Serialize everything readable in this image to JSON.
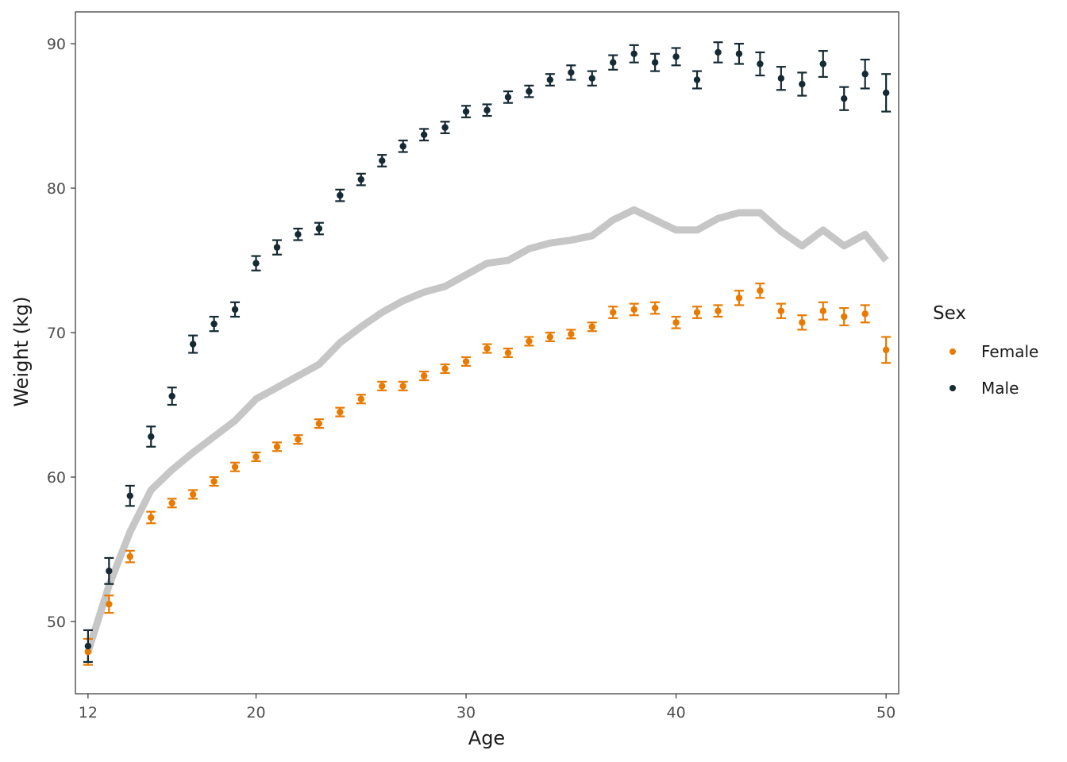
{
  "chart_data": {
    "type": "scatter",
    "xlabel": "Age",
    "ylabel": "Weight (kg)",
    "xlim": [
      11.4,
      50.6
    ],
    "ylim": [
      45,
      92.2
    ],
    "x_ticks": [
      12,
      20,
      30,
      40,
      50
    ],
    "y_ticks": [
      50,
      60,
      70,
      80,
      90
    ],
    "grid": false,
    "legend": {
      "title": "Sex",
      "position": "right"
    },
    "colors": {
      "Female": "#e87a00",
      "Male": "#152a33",
      "overall": "#c6c6c6"
    },
    "x": [
      12,
      13,
      14,
      15,
      16,
      17,
      18,
      19,
      20,
      21,
      22,
      23,
      24,
      25,
      26,
      27,
      28,
      29,
      30,
      31,
      32,
      33,
      34,
      35,
      36,
      37,
      38,
      39,
      40,
      41,
      42,
      43,
      44,
      45,
      46,
      47,
      48,
      49,
      50
    ],
    "series": [
      {
        "name": "Female",
        "values": [
          47.9,
          51.2,
          54.5,
          57.2,
          58.2,
          58.8,
          59.7,
          60.7,
          61.4,
          62.1,
          62.6,
          63.7,
          64.5,
          65.4,
          66.3,
          66.3,
          67.0,
          67.5,
          68.0,
          68.9,
          68.6,
          69.4,
          69.7,
          69.9,
          70.4,
          71.4,
          71.6,
          71.7,
          70.7,
          71.4,
          71.5,
          72.4,
          72.9,
          71.5,
          70.7,
          71.5,
          71.1,
          71.3,
          68.8
        ],
        "errors": [
          0.9,
          0.6,
          0.4,
          0.4,
          0.3,
          0.3,
          0.3,
          0.3,
          0.3,
          0.3,
          0.3,
          0.3,
          0.3,
          0.3,
          0.3,
          0.3,
          0.3,
          0.3,
          0.3,
          0.3,
          0.3,
          0.3,
          0.3,
          0.3,
          0.3,
          0.4,
          0.4,
          0.4,
          0.4,
          0.4,
          0.4,
          0.5,
          0.5,
          0.5,
          0.5,
          0.6,
          0.6,
          0.6,
          0.9
        ]
      },
      {
        "name": "Male",
        "values": [
          48.3,
          53.5,
          58.7,
          62.8,
          65.6,
          69.2,
          70.6,
          71.6,
          74.8,
          75.9,
          76.8,
          77.2,
          79.5,
          80.6,
          81.9,
          82.9,
          83.7,
          84.2,
          85.3,
          85.4,
          86.3,
          86.7,
          87.5,
          88.0,
          87.6,
          88.7,
          89.3,
          88.7,
          89.1,
          87.5,
          89.4,
          89.3,
          88.6,
          87.6,
          87.2,
          88.6,
          86.2,
          87.9,
          86.6
        ],
        "errors": [
          1.1,
          0.9,
          0.7,
          0.7,
          0.6,
          0.6,
          0.5,
          0.5,
          0.5,
          0.5,
          0.4,
          0.4,
          0.4,
          0.4,
          0.4,
          0.4,
          0.4,
          0.4,
          0.4,
          0.4,
          0.4,
          0.4,
          0.4,
          0.5,
          0.5,
          0.5,
          0.6,
          0.6,
          0.6,
          0.6,
          0.7,
          0.7,
          0.8,
          0.8,
          0.8,
          0.9,
          0.8,
          1.0,
          1.3
        ]
      }
    ],
    "overall_line": {
      "values": [
        47.9,
        52.5,
        56.2,
        59.1,
        60.5,
        61.7,
        62.8,
        63.9,
        65.4,
        66.2,
        67.0,
        67.8,
        69.3,
        70.4,
        71.4,
        72.2,
        72.8,
        73.2,
        74.0,
        74.8,
        75.0,
        75.8,
        76.2,
        76.4,
        76.7,
        77.8,
        78.5,
        77.8,
        77.1,
        77.1,
        77.9,
        78.3,
        78.3,
        77.0,
        76.0,
        77.1,
        76.0,
        76.8,
        75.0
      ]
    }
  }
}
